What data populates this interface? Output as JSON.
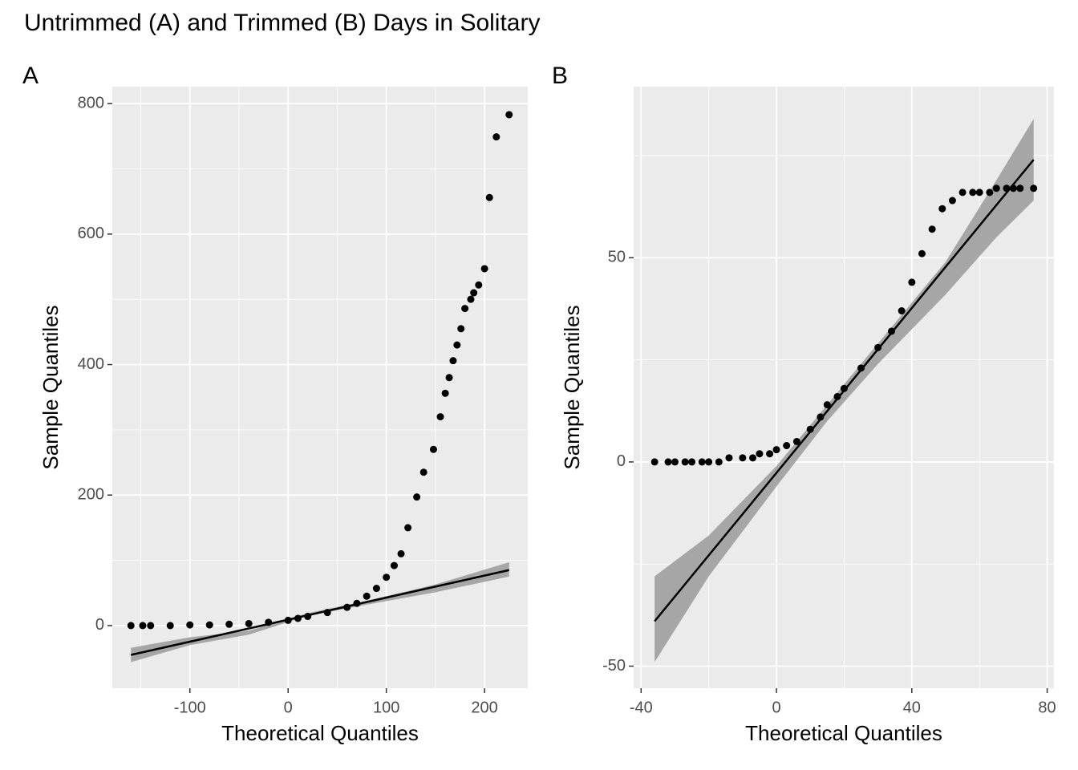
{
  "title": "Untrimmed (A) and Trimmed (B) Days in Solitary",
  "chart_data": [
    {
      "type": "scatter",
      "tag": "A",
      "x_label": "Theoretical Quantiles",
      "y_label": "Sample Quantiles",
      "xlim": [
        -179,
        244
      ],
      "ylim": [
        -96,
        826
      ],
      "xticks": [
        -100,
        0,
        100,
        200
      ],
      "yticks": [
        0,
        200,
        400,
        600,
        800
      ],
      "grid": true,
      "color": "#000000",
      "band_color": "#a6a6a6",
      "x": [
        -160,
        -148,
        -140,
        -120,
        -100,
        -80,
        -60,
        -40,
        -20,
        0,
        10,
        20,
        40,
        60,
        70,
        80,
        90,
        100,
        108,
        115,
        122,
        131,
        138,
        148,
        155,
        160,
        164,
        168,
        172,
        176,
        180,
        186,
        189,
        194,
        200,
        205,
        212,
        225
      ],
      "values": [
        0,
        0,
        0,
        0,
        1,
        1,
        2,
        3,
        5,
        8,
        11,
        14,
        20,
        28,
        34,
        45,
        57,
        74,
        92,
        110,
        150,
        197,
        235,
        270,
        320,
        356,
        380,
        406,
        430,
        455,
        486,
        500,
        510,
        522,
        547,
        656,
        749,
        783
      ],
      "line": {
        "x": [
          -160,
          225
        ],
        "values": [
          -45,
          85
        ]
      },
      "band": {
        "x": [
          -160,
          -100,
          -40,
          20,
          80,
          150,
          225
        ],
        "lower": [
          -56,
          -30,
          -14,
          15,
          32,
          51,
          75
        ],
        "upper": [
          -34,
          -18,
          -8,
          19,
          38,
          63,
          97
        ]
      }
    },
    {
      "type": "scatter",
      "tag": "B",
      "x_label": "Theoretical Quantiles",
      "y_label": "Sample Quantiles",
      "xlim": [
        -42.2,
        82
      ],
      "ylim": [
        -55.4,
        91.9
      ],
      "xticks": [
        -40,
        0,
        40,
        80
      ],
      "yticks": [
        -50,
        0,
        50
      ],
      "grid": true,
      "color": "#000000",
      "band_color": "#a6a6a6",
      "x": [
        -36,
        -32,
        -30,
        -27,
        -25,
        -22,
        -20,
        -17,
        -14,
        -10,
        -7,
        -5,
        -2,
        0,
        3,
        6,
        10,
        13,
        15,
        18,
        20,
        25,
        30,
        34,
        37,
        40,
        43,
        46,
        49,
        52,
        55,
        58,
        60,
        63,
        65,
        68,
        70,
        72,
        76
      ],
      "values": [
        0,
        0,
        0,
        0,
        0,
        0,
        0,
        0,
        1,
        1,
        1,
        2,
        2,
        3,
        4,
        5,
        8,
        11,
        14,
        16,
        18,
        23,
        28,
        32,
        37,
        44,
        51,
        57,
        62,
        64,
        66,
        66,
        66,
        66,
        67,
        67,
        67,
        67,
        67
      ],
      "line": {
        "x": [
          -36,
          76
        ],
        "values": [
          -39,
          74
        ]
      },
      "band": {
        "x": [
          -36,
          -20,
          0,
          15,
          30,
          50,
          65,
          76
        ],
        "lower": [
          -49,
          -28,
          -6,
          10,
          24,
          41,
          55,
          64
        ],
        "upper": [
          -28,
          -18,
          -1,
          14,
          29,
          49,
          69,
          84
        ]
      }
    }
  ]
}
